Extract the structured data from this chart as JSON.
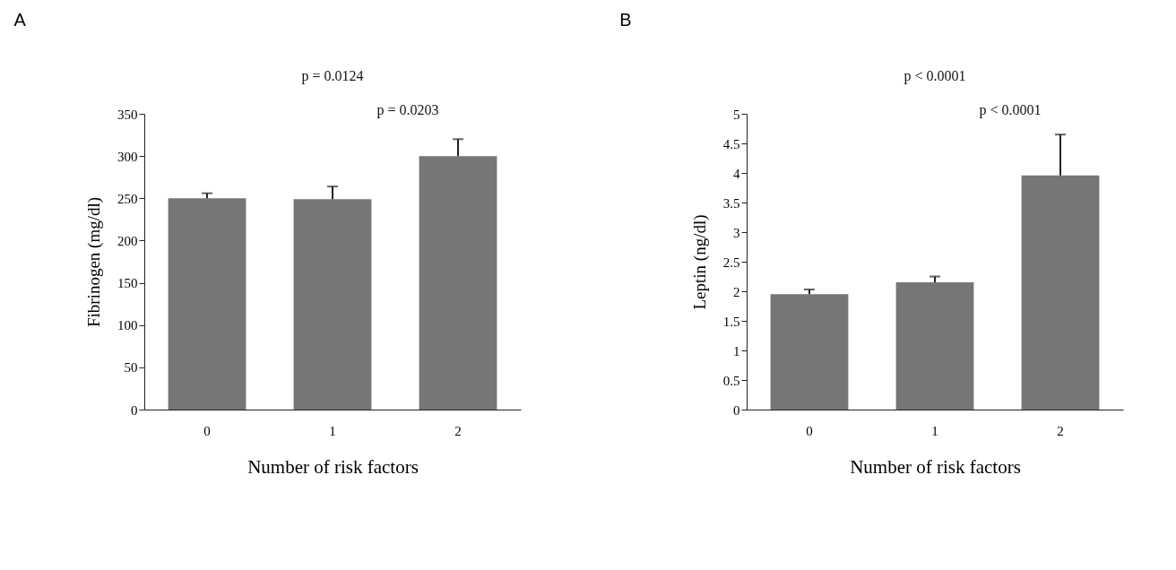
{
  "chart_data": [
    {
      "type": "bar",
      "title": "A",
      "xlabel": "Number of risk factors",
      "ylabel": "Fibrinogen (mg/dl)",
      "categories": [
        "0",
        "1",
        "2"
      ],
      "values": [
        250,
        249,
        300
      ],
      "errors": [
        [
          250,
          256
        ],
        [
          249,
          264
        ],
        [
          300,
          320
        ]
      ],
      "color": "#767676",
      "ylim": [
        0,
        350
      ],
      "yticks": [
        0,
        50,
        100,
        150,
        200,
        250,
        300,
        350
      ],
      "annotations": [
        "p = 0.0124",
        "p = 0.0203"
      ]
    },
    {
      "type": "bar",
      "title": "B",
      "xlabel": "Number of risk factors",
      "ylabel": "Leptin (ng/dl)",
      "categories": [
        "0",
        "1",
        "2"
      ],
      "values": [
        1.95,
        2.15,
        3.96
      ],
      "errors": [
        [
          1.95,
          2.03
        ],
        [
          2.15,
          2.25
        ],
        [
          3.96,
          4.65
        ]
      ],
      "color": "#767676",
      "ylim": [
        0,
        5
      ],
      "yticks": [
        0,
        0.5,
        1,
        1.5,
        2,
        2.5,
        3,
        3.5,
        4,
        4.5,
        5
      ],
      "annotations": [
        "p < 0.0001",
        "p < 0.0001"
      ]
    }
  ]
}
